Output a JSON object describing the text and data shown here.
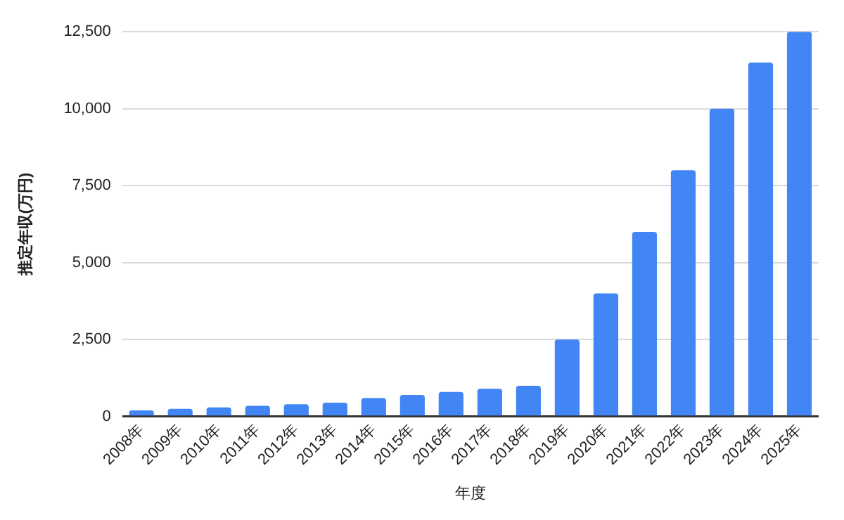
{
  "chart_data": {
    "type": "bar",
    "xlabel": "年度",
    "ylabel": "推定年収(万円)",
    "categories": [
      "2008年",
      "2009年",
      "2010年",
      "2011年",
      "2012年",
      "2013年",
      "2014年",
      "2015年",
      "2016年",
      "2017年",
      "2018年",
      "2019年",
      "2020年",
      "2021年",
      "2022年",
      "2023年",
      "2024年",
      "2025年"
    ],
    "values": [
      200,
      250,
      300,
      350,
      400,
      450,
      600,
      700,
      800,
      900,
      1000,
      2500,
      4000,
      6000,
      8000,
      10000,
      11500,
      12500
    ],
    "color": "#4285f4",
    "ylim": [
      0,
      12500
    ],
    "yticks": [
      {
        "value": 0,
        "label": "0"
      },
      {
        "value": 2500,
        "label": "2,500"
      },
      {
        "value": 5000,
        "label": "5,000"
      },
      {
        "value": 7500,
        "label": "7,500"
      },
      {
        "value": 10000,
        "label": "10,000"
      },
      {
        "value": 12500,
        "label": "12,500"
      }
    ],
    "grid": "y",
    "legend": false
  }
}
